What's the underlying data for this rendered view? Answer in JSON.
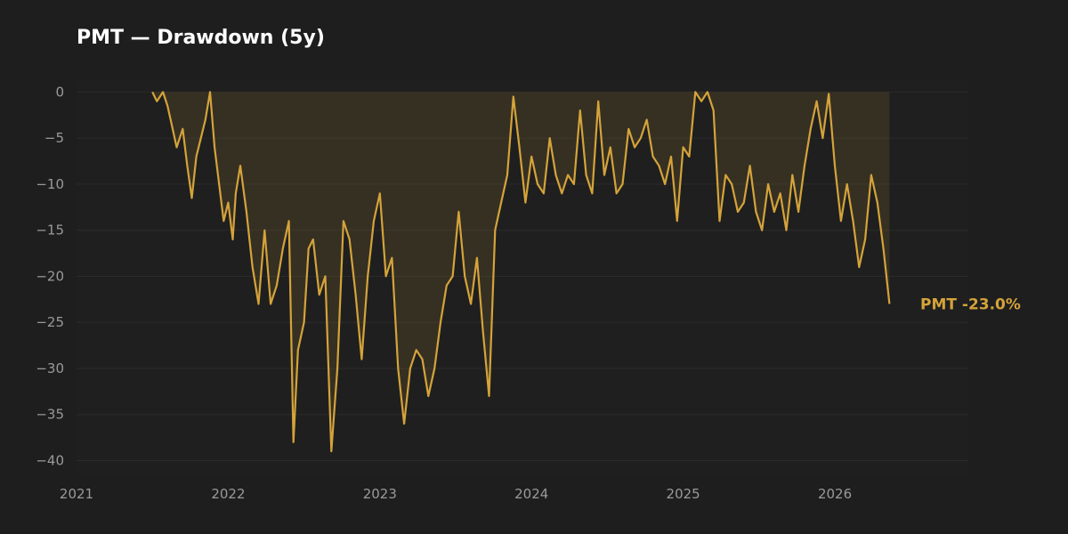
{
  "chart_data": {
    "type": "area",
    "title": "PMT — Drawdown (5y)",
    "xlabel": "",
    "ylabel": "",
    "x_ticks": [
      "2021",
      "2022",
      "2023",
      "2024",
      "2025",
      "2026"
    ],
    "y_ticks": [
      0,
      -5,
      -10,
      -15,
      -20,
      -25,
      -30,
      -35,
      -40
    ],
    "xlim": [
      2021.0,
      2026.88
    ],
    "ylim": [
      -41.5,
      1.2
    ],
    "grid": true,
    "legend": "none",
    "series": [
      {
        "name": "PMT",
        "color": "#d4a33a",
        "end_label": "PMT  -23.0%",
        "x": [
          2021.5,
          2021.53,
          2021.57,
          2021.6,
          2021.62,
          2021.66,
          2021.7,
          2021.73,
          2021.76,
          2021.79,
          2021.82,
          2021.85,
          2021.88,
          2021.91,
          2021.94,
          2021.97,
          2022.0,
          2022.03,
          2022.05,
          2022.08,
          2022.12,
          2022.16,
          2022.2,
          2022.24,
          2022.28,
          2022.32,
          2022.36,
          2022.4,
          2022.43,
          2022.46,
          2022.5,
          2022.53,
          2022.56,
          2022.6,
          2022.64,
          2022.68,
          2022.72,
          2022.76,
          2022.8,
          2022.84,
          2022.88,
          2022.92,
          2022.96,
          2023.0,
          2023.04,
          2023.08,
          2023.12,
          2023.16,
          2023.2,
          2023.24,
          2023.28,
          2023.32,
          2023.36,
          2023.4,
          2023.44,
          2023.48,
          2023.52,
          2023.56,
          2023.6,
          2023.64,
          2023.68,
          2023.72,
          2023.76,
          2023.8,
          2023.84,
          2023.88,
          2023.92,
          2023.96,
          2024.0,
          2024.04,
          2024.08,
          2024.12,
          2024.16,
          2024.2,
          2024.24,
          2024.28,
          2024.32,
          2024.36,
          2024.4,
          2024.44,
          2024.48,
          2024.52,
          2024.56,
          2024.6,
          2024.64,
          2024.68,
          2024.72,
          2024.76,
          2024.8,
          2024.84,
          2024.88,
          2024.92,
          2024.96,
          2025.0,
          2025.04,
          2025.08,
          2025.12,
          2025.16,
          2025.2,
          2025.24,
          2025.28,
          2025.32,
          2025.36,
          2025.4,
          2025.44,
          2025.48,
          2025.52,
          2025.56,
          2025.6,
          2025.64,
          2025.68,
          2025.72,
          2025.76,
          2025.8,
          2025.84,
          2025.88,
          2025.92,
          2025.96,
          2026.0,
          2026.04,
          2026.08,
          2026.12,
          2026.16,
          2026.2,
          2026.24,
          2026.28,
          2026.32,
          2026.36
        ],
        "values": [
          0,
          -1,
          0,
          -1.5,
          -3,
          -6,
          -4,
          -8,
          -11.5,
          -7,
          -5,
          -3,
          0,
          -6,
          -10,
          -14,
          -12,
          -16,
          -11,
          -8,
          -13,
          -19,
          -23,
          -15,
          -23,
          -21,
          -17,
          -14,
          -38,
          -28,
          -25,
          -17,
          -16,
          -22,
          -20,
          -39,
          -30,
          -14,
          -16,
          -22,
          -29,
          -20,
          -14,
          -11,
          -20,
          -18,
          -30,
          -36,
          -30,
          -28,
          -29,
          -33,
          -30,
          -25,
          -21,
          -20,
          -13,
          -20,
          -23,
          -18,
          -26,
          -33,
          -15,
          -12,
          -9,
          -0.5,
          -6,
          -12,
          -7,
          -10,
          -11,
          -5,
          -9,
          -11,
          -9,
          -10,
          -2,
          -9,
          -11,
          -1,
          -9,
          -6,
          -11,
          -10,
          -4,
          -6,
          -5,
          -3,
          -7,
          -8,
          -10,
          -7,
          -14,
          -6,
          -7,
          0,
          -1,
          0,
          -2,
          -14,
          -9,
          -10,
          -13,
          -12,
          -8,
          -13,
          -15,
          -10,
          -13,
          -11,
          -15,
          -9,
          -13,
          -8,
          -4,
          -1,
          -5,
          -0.2,
          -8,
          -14,
          -10,
          -14,
          -19,
          -16,
          -9,
          -12,
          -17,
          -23
        ]
      }
    ]
  }
}
